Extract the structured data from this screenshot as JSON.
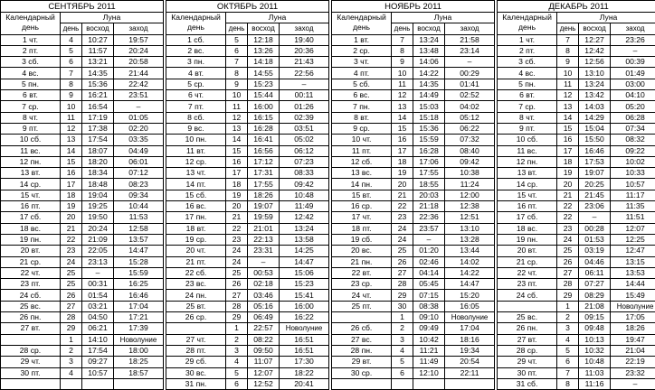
{
  "headers": {
    "calendar_day": "Календарный день",
    "moon": "Луна",
    "moon_day": "день",
    "rise": "восход",
    "set": "заход"
  },
  "months": [
    {
      "title": "СЕНТЯБРЬ 2011",
      "rows": [
        [
          "1 чт.",
          "4",
          "10:27",
          "19:57"
        ],
        [
          "2 пт.",
          "5",
          "11:57",
          "20:24"
        ],
        [
          "3 сб.",
          "6",
          "13:21",
          "20:58"
        ],
        [
          "4 вс.",
          "7",
          "14:35",
          "21:44"
        ],
        [
          "5 пн.",
          "8",
          "15:36",
          "22:42"
        ],
        [
          "6 вт.",
          "9",
          "16:21",
          "23:51"
        ],
        [
          "7 ср.",
          "10",
          "16:54",
          "–"
        ],
        [
          "8 чт.",
          "11",
          "17:19",
          "01:05"
        ],
        [
          "9 пт.",
          "12",
          "17:38",
          "02:20"
        ],
        [
          "10 сб.",
          "13",
          "17:54",
          "03:35"
        ],
        [
          "11 вс.",
          "14",
          "18:07",
          "04:49"
        ],
        [
          "12 пн.",
          "15",
          "18:20",
          "06:01"
        ],
        [
          "13 вт.",
          "16",
          "18:34",
          "07:12"
        ],
        [
          "14 ср.",
          "17",
          "18:48",
          "08:23"
        ],
        [
          "15 чт.",
          "18",
          "19:04",
          "09:34"
        ],
        [
          "16 пт.",
          "19",
          "19:25",
          "10:44"
        ],
        [
          "17 сб.",
          "20",
          "19:50",
          "11:53"
        ],
        [
          "18 вс.",
          "21",
          "20:24",
          "12:58"
        ],
        [
          "19 пн.",
          "22",
          "21:09",
          "13:57"
        ],
        [
          "20 вт.",
          "23",
          "22:05",
          "14:47"
        ],
        [
          "21 ср.",
          "24",
          "23:13",
          "15:28"
        ],
        [
          "22 чт.",
          "25",
          "–",
          "15:59"
        ],
        [
          "23 пт.",
          "25",
          "00:31",
          "16:25"
        ],
        [
          "24 сб.",
          "26",
          "01:54",
          "16:46"
        ],
        [
          "25 вс.",
          "27",
          "03:21",
          "17:04"
        ],
        [
          "26 пн.",
          "28",
          "04:50",
          "17:21"
        ],
        [
          "27 вт.",
          "29",
          "06:21",
          "17:39"
        ],
        [
          "",
          "1",
          "14:10",
          "Новолуние"
        ],
        [
          "28 ср.",
          "2",
          "17:54",
          "18:00"
        ],
        [
          "29 чт.",
          "3",
          "09:27",
          "18:25"
        ],
        [
          "30 пт.",
          "4",
          "10:57",
          "18:57"
        ],
        [
          "",
          "",
          "",
          ""
        ]
      ]
    },
    {
      "title": "ОКТЯБРЬ 2011",
      "rows": [
        [
          "1 сб.",
          "5",
          "12:18",
          "19:40"
        ],
        [
          "2 вс.",
          "6",
          "13:26",
          "20:36"
        ],
        [
          "3 пн.",
          "7",
          "14:18",
          "21:43"
        ],
        [
          "4 вт.",
          "8",
          "14:55",
          "22:56"
        ],
        [
          "5 ср.",
          "9",
          "15:23",
          "–"
        ],
        [
          "6 чт.",
          "10",
          "15:44",
          "00:11"
        ],
        [
          "7 пт.",
          "11",
          "16:00",
          "01:26"
        ],
        [
          "8 сб.",
          "12",
          "16:15",
          "02:39"
        ],
        [
          "9 вс.",
          "13",
          "16:28",
          "03:51"
        ],
        [
          "10 пн.",
          "14",
          "16:41",
          "05:02"
        ],
        [
          "11 вт.",
          "15",
          "16:56",
          "06:12"
        ],
        [
          "12 ср.",
          "16",
          "17:12",
          "07:23"
        ],
        [
          "13 чт.",
          "17",
          "17:31",
          "08:33"
        ],
        [
          "14 пт.",
          "18",
          "17:55",
          "09:42"
        ],
        [
          "15 сб.",
          "19",
          "18:26",
          "10:48"
        ],
        [
          "16 вс.",
          "20",
          "19:07",
          "11:49"
        ],
        [
          "17 пн.",
          "21",
          "19:59",
          "12:42"
        ],
        [
          "18 вт.",
          "22",
          "21:01",
          "13:24"
        ],
        [
          "19 ср.",
          "23",
          "22:13",
          "13:58"
        ],
        [
          "20 чт.",
          "24",
          "23:31",
          "14:25"
        ],
        [
          "21 пт.",
          "24",
          "–",
          "14:47"
        ],
        [
          "22 сб.",
          "25",
          "00:53",
          "15:06"
        ],
        [
          "23 вс.",
          "26",
          "02:18",
          "15:23"
        ],
        [
          "24 пн.",
          "27",
          "03:46",
          "15:41"
        ],
        [
          "25 вт.",
          "28",
          "05:16",
          "16:00"
        ],
        [
          "26 ср.",
          "29",
          "06:49",
          "16:22"
        ],
        [
          "",
          "1",
          "22:57",
          "Новолуние"
        ],
        [
          "27 чт.",
          "2",
          "08:22",
          "16:51"
        ],
        [
          "28 пт.",
          "3",
          "09:50",
          "16:51"
        ],
        [
          "29 сб.",
          "4",
          "11:07",
          "17:30"
        ],
        [
          "30 вс.",
          "5",
          "12:07",
          "18:22"
        ],
        [
          "31 пн.",
          "6",
          "12:52",
          "20:41"
        ]
      ]
    },
    {
      "title": "НОЯБРЬ 2011",
      "rows": [
        [
          "1 вт.",
          "7",
          "13:24",
          "21:58"
        ],
        [
          "2 ср.",
          "8",
          "13:48",
          "23:14"
        ],
        [
          "3 чт.",
          "9",
          "14:06",
          "–"
        ],
        [
          "4 пт.",
          "10",
          "14:22",
          "00:29"
        ],
        [
          "5 сб.",
          "11",
          "14:35",
          "01:41"
        ],
        [
          "6 вс.",
          "12",
          "14:49",
          "02:52"
        ],
        [
          "7 пн.",
          "13",
          "15:03",
          "04:02"
        ],
        [
          "8 вт.",
          "14",
          "15:18",
          "05:12"
        ],
        [
          "9 ср.",
          "15",
          "15:36",
          "06:22"
        ],
        [
          "10 чт.",
          "16",
          "15:59",
          "07:32"
        ],
        [
          "11 пт.",
          "17",
          "16:28",
          "08:40"
        ],
        [
          "12 сб.",
          "18",
          "17:06",
          "09:42"
        ],
        [
          "13 вс.",
          "19",
          "17:55",
          "10:38"
        ],
        [
          "14 пн.",
          "20",
          "18:55",
          "11:24"
        ],
        [
          "15 вт.",
          "21",
          "20:03",
          "12:00"
        ],
        [
          "16 ср.",
          "22",
          "21:18",
          "12:38"
        ],
        [
          "17 чт.",
          "23",
          "22:36",
          "12:51"
        ],
        [
          "18 пт.",
          "24",
          "23:57",
          "13:10"
        ],
        [
          "19 сб.",
          "24",
          "–",
          "13:28"
        ],
        [
          "20 вс.",
          "25",
          "01:20",
          "13:44"
        ],
        [
          "21 пн.",
          "26",
          "02:46",
          "14:02"
        ],
        [
          "22 вт.",
          "27",
          "04:14",
          "14:22"
        ],
        [
          "23 ср.",
          "28",
          "05:45",
          "14:47"
        ],
        [
          "24 чт.",
          "29",
          "07:15",
          "15:20"
        ],
        [
          "25 пт.",
          "30",
          "08:38",
          "16:05"
        ],
        [
          "",
          "1",
          "09:10",
          "Новолуние"
        ],
        [
          "26 сб.",
          "2",
          "09:49",
          "17:04"
        ],
        [
          "27 вс.",
          "3",
          "10:42",
          "18:16"
        ],
        [
          "28 пн.",
          "4",
          "11:21",
          "19:34"
        ],
        [
          "29 вт.",
          "5",
          "11:49",
          "20:54"
        ],
        [
          "30 ср.",
          "6",
          "12:10",
          "22:11"
        ],
        [
          "",
          "",
          "",
          ""
        ]
      ]
    },
    {
      "title": "ДЕКАБРЬ 2011",
      "rows": [
        [
          "1 чт.",
          "7",
          "12:27",
          "23:26"
        ],
        [
          "2 пт.",
          "8",
          "12:42",
          "–"
        ],
        [
          "3 сб.",
          "9",
          "12:56",
          "00:39"
        ],
        [
          "4 вс.",
          "10",
          "13:10",
          "01:49"
        ],
        [
          "5 пн.",
          "11",
          "13:24",
          "03:00"
        ],
        [
          "6 вт.",
          "12",
          "13:42",
          "04:10"
        ],
        [
          "7 ср.",
          "13",
          "14:03",
          "05:20"
        ],
        [
          "8 чт.",
          "14",
          "14:29",
          "06:28"
        ],
        [
          "9 пт.",
          "15",
          "15:04",
          "07:34"
        ],
        [
          "10 сб.",
          "16",
          "15:50",
          "08:32"
        ],
        [
          "11 вс.",
          "17",
          "16:46",
          "09:22"
        ],
        [
          "12 пн.",
          "18",
          "17:53",
          "10:02"
        ],
        [
          "13 вт.",
          "19",
          "19:07",
          "10:33"
        ],
        [
          "14 ср.",
          "20",
          "20:25",
          "10:57"
        ],
        [
          "15 чт.",
          "21",
          "21:45",
          "11:17"
        ],
        [
          "16 пт.",
          "22",
          "23:06",
          "11:35"
        ],
        [
          "17 сб.",
          "22",
          "–",
          "11:51"
        ],
        [
          "18 вс.",
          "23",
          "00:28",
          "12:07"
        ],
        [
          "19 пн.",
          "24",
          "01:53",
          "12:25"
        ],
        [
          "20 вт.",
          "25",
          "03:19",
          "12:47"
        ],
        [
          "21 ср.",
          "26",
          "04:46",
          "13:15"
        ],
        [
          "22 чт.",
          "27",
          "06:11",
          "13:53"
        ],
        [
          "23 пт.",
          "28",
          "07:27",
          "14:44"
        ],
        [
          "24 сб.",
          "29",
          "08:29",
          "15:49"
        ],
        [
          "",
          "1",
          "21:08",
          "Новолуние"
        ],
        [
          "25 вс.",
          "2",
          "09:15",
          "17:05"
        ],
        [
          "26 пн.",
          "3",
          "09:48",
          "18:26"
        ],
        [
          "27 вт.",
          "4",
          "10:13",
          "19:47"
        ],
        [
          "28 ср.",
          "5",
          "10:32",
          "21:04"
        ],
        [
          "29 чт.",
          "6",
          "10:48",
          "22:19"
        ],
        [
          "30 пт.",
          "7",
          "11:03",
          "23:32"
        ],
        [
          "31 сб.",
          "8",
          "11:16",
          "–"
        ]
      ]
    }
  ]
}
